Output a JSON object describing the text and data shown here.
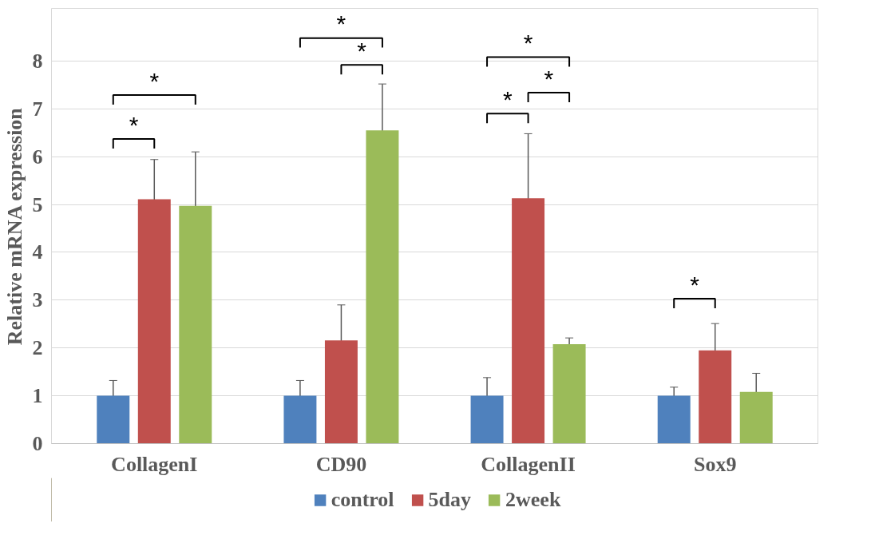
{
  "chart_data": {
    "type": "bar",
    "ylabel": "Relative mRNA expression",
    "categories": [
      "CollagenI",
      "CD90",
      "CollagenII",
      "Sox9"
    ],
    "series": [
      {
        "name": "control",
        "color": "#4f81bd",
        "values": [
          1.0,
          1.0,
          1.0,
          1.0
        ],
        "errors": [
          0.32,
          0.32,
          0.38,
          0.18
        ]
      },
      {
        "name": "5day",
        "color": "#c0504d",
        "values": [
          5.11,
          2.16,
          5.13,
          1.95
        ],
        "errors": [
          0.83,
          0.74,
          1.35,
          0.56
        ]
      },
      {
        "name": "2week",
        "color": "#9bbb59",
        "values": [
          4.97,
          6.55,
          2.08,
          1.08
        ],
        "errors": [
          1.13,
          0.97,
          0.13,
          0.39
        ]
      }
    ],
    "ylim": [
      0,
      9.1
    ],
    "yticks": [
      0,
      1,
      2,
      3,
      4,
      5,
      6,
      7,
      8
    ],
    "grid": "y",
    "legend": "bottom",
    "annotations": [
      "*",
      "*",
      "*",
      "*",
      "*",
      "*",
      "*",
      "*"
    ]
  }
}
